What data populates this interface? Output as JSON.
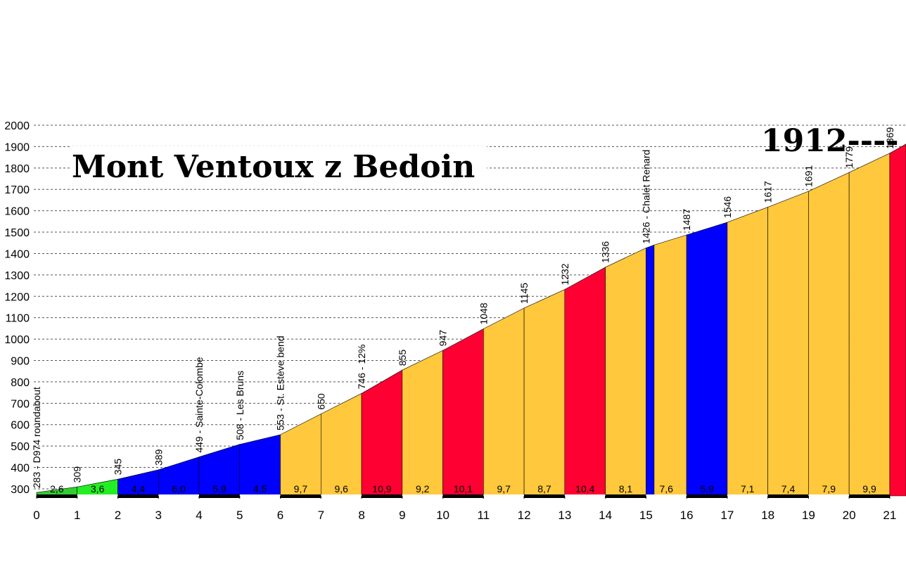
{
  "chart_data": {
    "type": "profile",
    "title": "Mont Ventoux z Bedoin",
    "x": [
      0,
      1,
      2,
      3,
      4,
      5,
      6,
      7,
      8,
      9,
      10,
      11,
      12,
      13,
      14,
      15,
      15.2,
      16,
      17,
      18,
      19,
      20,
      21,
      21.4
    ],
    "elevation": [
      283,
      309,
      345,
      389,
      449,
      508,
      553,
      650,
      746,
      855,
      947,
      1048,
      1145,
      1232,
      1336,
      1426,
      1440,
      1487,
      1546,
      1617,
      1691,
      1779,
      1869,
      1912
    ],
    "value_labels": [
      "283 - D974 roundabout",
      "309",
      "345",
      "389",
      "449 - Sainte-Colombe",
      "508 - Les Bruns",
      "553 - St. Estève bend",
      "650",
      "746 - 12%",
      "855",
      "947",
      "1048",
      "1145",
      "1232",
      "1336",
      "1426 - Chalet Renard",
      null,
      "1487",
      "1546",
      "1617",
      "1691",
      "1779",
      "1869",
      "1912----"
    ],
    "segment_colors": [
      "#33cc33",
      "#22ee22",
      "#0000ff",
      "#0000ff",
      "#0000ff",
      "#0000ff",
      "#ffc83d",
      "#ffc83d",
      "#ff0033",
      "#ffc83d",
      "#ff0033",
      "#ffc83d",
      "#ffc83d",
      "#ff0033",
      "#ffc83d",
      "#0000ff",
      "#ffc83d",
      "#0000ff",
      "#ffc83d",
      "#ffc83d",
      "#ffc83d",
      "#ffc83d",
      "#ff0033"
    ],
    "grades": [
      2.6,
      3.6,
      4.4,
      6.0,
      5.9,
      4.5,
      9.7,
      9.6,
      10.9,
      9.2,
      10.1,
      9.7,
      8.7,
      10.4,
      8.1,
      7.6,
      5.9,
      7.1,
      7.4,
      7.9,
      9.9
    ],
    "grade_labels": [
      "2,6",
      "3,6",
      "4,4",
      "6,0",
      "5,9",
      "4,5",
      "9,7",
      "9,6",
      "10,9",
      "9,2",
      "10,1",
      "9,7",
      "8,7",
      "10,4",
      "8,1",
      "7,6",
      "5,9",
      "7,1",
      "7,4",
      "7,9",
      "9,9"
    ],
    "xlim": [
      0,
      21.4
    ],
    "xticks": [
      0,
      1,
      2,
      3,
      4,
      5,
      6,
      7,
      8,
      9,
      10,
      11,
      12,
      13,
      14,
      15,
      16,
      17,
      18,
      19,
      20,
      21
    ],
    "ylim": [
      267,
      2000
    ],
    "yticks": [
      300,
      400,
      500,
      600,
      700,
      800,
      900,
      1000,
      1100,
      1200,
      1300,
      1400,
      1500,
      1600,
      1700,
      1800,
      1900,
      2000
    ],
    "grid": true
  }
}
